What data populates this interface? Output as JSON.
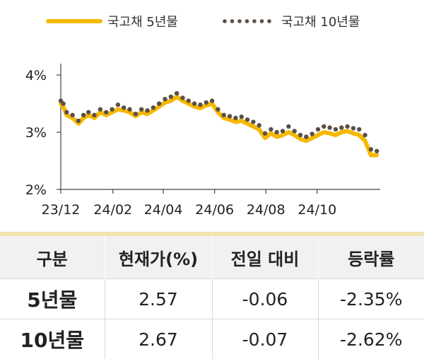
{
  "chart_data": {
    "type": "line",
    "title": "",
    "xlabel": "",
    "ylabel": "",
    "ylim": [
      2,
      4.2
    ],
    "yticks": [
      "2%",
      "3%",
      "4%"
    ],
    "ytick_values": [
      2,
      3,
      4
    ],
    "xticks": [
      "23/12",
      "24/02",
      "24/04",
      "24/06",
      "24/08",
      "24/10"
    ],
    "xtick_values": [
      "2023-12-01",
      "2024-02-01",
      "2024-04-01",
      "2024-06-01",
      "2024-08-01",
      "2024-10-01"
    ],
    "xlim": [
      "2023-12-01",
      "2024-12-15"
    ],
    "legend": {
      "placement": "top"
    },
    "series": [
      {
        "name": "국고채 5년물",
        "color": "#F5B800",
        "style": "solid",
        "x": [
          "2023-12-01",
          "2023-12-04",
          "2023-12-08",
          "2023-12-15",
          "2023-12-22",
          "2023-12-28",
          "2024-01-03",
          "2024-01-10",
          "2024-01-17",
          "2024-01-24",
          "2024-01-31",
          "2024-02-07",
          "2024-02-14",
          "2024-02-21",
          "2024-02-28",
          "2024-03-06",
          "2024-03-13",
          "2024-03-20",
          "2024-03-27",
          "2024-04-03",
          "2024-04-10",
          "2024-04-17",
          "2024-04-24",
          "2024-05-01",
          "2024-05-08",
          "2024-05-15",
          "2024-05-22",
          "2024-05-29",
          "2024-06-05",
          "2024-06-12",
          "2024-06-19",
          "2024-06-26",
          "2024-07-03",
          "2024-07-10",
          "2024-07-17",
          "2024-07-24",
          "2024-07-31",
          "2024-08-07",
          "2024-08-14",
          "2024-08-21",
          "2024-08-28",
          "2024-09-04",
          "2024-09-11",
          "2024-09-18",
          "2024-09-25",
          "2024-10-02",
          "2024-10-09",
          "2024-10-16",
          "2024-10-23",
          "2024-10-30",
          "2024-11-06",
          "2024-11-13",
          "2024-11-20",
          "2024-11-27",
          "2024-12-04",
          "2024-12-11"
        ],
        "values": [
          3.5,
          3.45,
          3.3,
          3.25,
          3.15,
          3.25,
          3.3,
          3.25,
          3.35,
          3.3,
          3.35,
          3.4,
          3.38,
          3.35,
          3.28,
          3.35,
          3.32,
          3.38,
          3.45,
          3.52,
          3.55,
          3.62,
          3.55,
          3.5,
          3.45,
          3.42,
          3.47,
          3.5,
          3.35,
          3.25,
          3.22,
          3.18,
          3.2,
          3.15,
          3.1,
          3.05,
          2.9,
          2.98,
          2.92,
          2.95,
          3.0,
          2.95,
          2.88,
          2.85,
          2.9,
          2.95,
          3.0,
          2.98,
          2.95,
          3.0,
          3.02,
          2.98,
          2.95,
          2.85,
          2.6,
          2.6
        ]
      },
      {
        "name": "국고채 10년물",
        "color": "#5a5048",
        "style": "dotted",
        "x": [
          "2023-12-01",
          "2023-12-04",
          "2023-12-08",
          "2023-12-15",
          "2023-12-22",
          "2023-12-28",
          "2024-01-03",
          "2024-01-10",
          "2024-01-17",
          "2024-01-24",
          "2024-01-31",
          "2024-02-07",
          "2024-02-14",
          "2024-02-21",
          "2024-02-28",
          "2024-03-06",
          "2024-03-13",
          "2024-03-20",
          "2024-03-27",
          "2024-04-03",
          "2024-04-10",
          "2024-04-17",
          "2024-04-24",
          "2024-05-01",
          "2024-05-08",
          "2024-05-15",
          "2024-05-22",
          "2024-05-29",
          "2024-06-05",
          "2024-06-12",
          "2024-06-19",
          "2024-06-26",
          "2024-07-03",
          "2024-07-10",
          "2024-07-17",
          "2024-07-24",
          "2024-07-31",
          "2024-08-07",
          "2024-08-14",
          "2024-08-21",
          "2024-08-28",
          "2024-09-04",
          "2024-09-11",
          "2024-09-18",
          "2024-09-25",
          "2024-10-02",
          "2024-10-09",
          "2024-10-16",
          "2024-10-23",
          "2024-10-30",
          "2024-11-06",
          "2024-11-13",
          "2024-11-20",
          "2024-11-27",
          "2024-12-04",
          "2024-12-11"
        ],
        "values": [
          3.55,
          3.5,
          3.35,
          3.3,
          3.2,
          3.3,
          3.35,
          3.3,
          3.4,
          3.35,
          3.4,
          3.48,
          3.43,
          3.4,
          3.32,
          3.4,
          3.38,
          3.43,
          3.5,
          3.58,
          3.62,
          3.68,
          3.6,
          3.55,
          3.5,
          3.48,
          3.52,
          3.55,
          3.4,
          3.3,
          3.28,
          3.25,
          3.27,
          3.22,
          3.18,
          3.12,
          2.98,
          3.05,
          3.0,
          3.02,
          3.1,
          3.02,
          2.95,
          2.92,
          2.97,
          3.05,
          3.1,
          3.08,
          3.05,
          3.08,
          3.1,
          3.07,
          3.05,
          2.95,
          2.7,
          2.67
        ]
      }
    ]
  },
  "table": {
    "headers": [
      "구분",
      "현재가(%)",
      "전일 대비",
      "등락률"
    ],
    "rows": [
      [
        "5년물",
        "2.57",
        "-0.06",
        "-2.35%"
      ],
      [
        "10년물",
        "2.67",
        "-0.07",
        "-2.62%"
      ]
    ]
  }
}
